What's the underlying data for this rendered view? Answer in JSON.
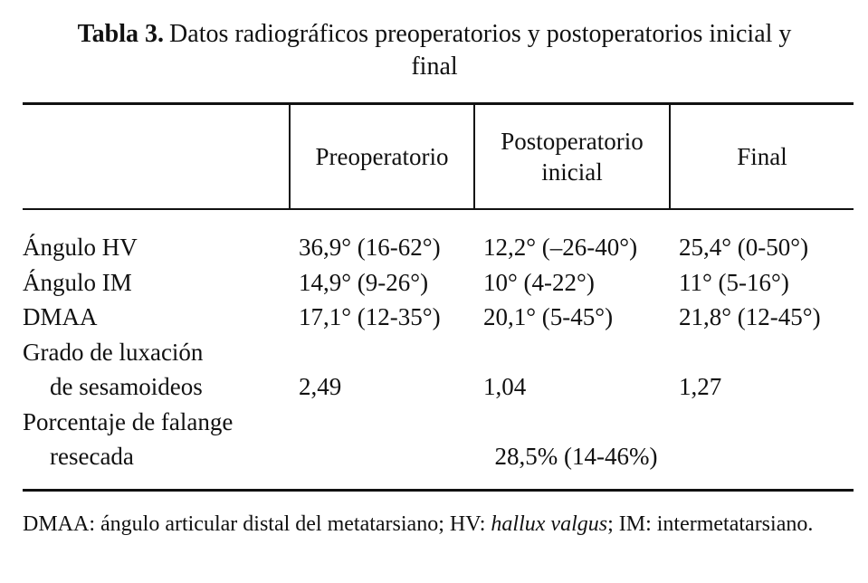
{
  "title": {
    "label": "Tabla 3.",
    "text": "Datos radiográficos preoperatorios y postoperatorios inicial y final"
  },
  "table": {
    "header": [
      "Preoperatorio",
      "Postoperatorio inicial",
      "Final"
    ],
    "rows": [
      {
        "label": [
          "Ángulo HV"
        ],
        "cells": [
          "36,9° (16-62°)",
          "12,2° (–26-40°)",
          "25,4° (0-50°)"
        ]
      },
      {
        "label": [
          "Ángulo IM"
        ],
        "cells": [
          "14,9° (9-26°)",
          "10° (4-22°)",
          "11° (5-16°)"
        ]
      },
      {
        "label": [
          "DMAA"
        ],
        "cells": [
          "17,1° (12-35°)",
          "20,1° (5-45°)",
          "21,8° (12-45°)"
        ]
      },
      {
        "label": [
          "Grado de luxación",
          "de sesamoideos"
        ],
        "cells": [
          "2,49",
          "1,04",
          "1,27"
        ]
      },
      {
        "label": [
          "Porcentaje de falange",
          "resecada"
        ],
        "cells": [
          "28,5% (14-46%)"
        ]
      }
    ]
  },
  "footnote": [
    "DMAA: ángulo articular distal del metatarsiano; HV: ",
    "hallux valgus",
    "; IM: intermetatarsiano."
  ]
}
